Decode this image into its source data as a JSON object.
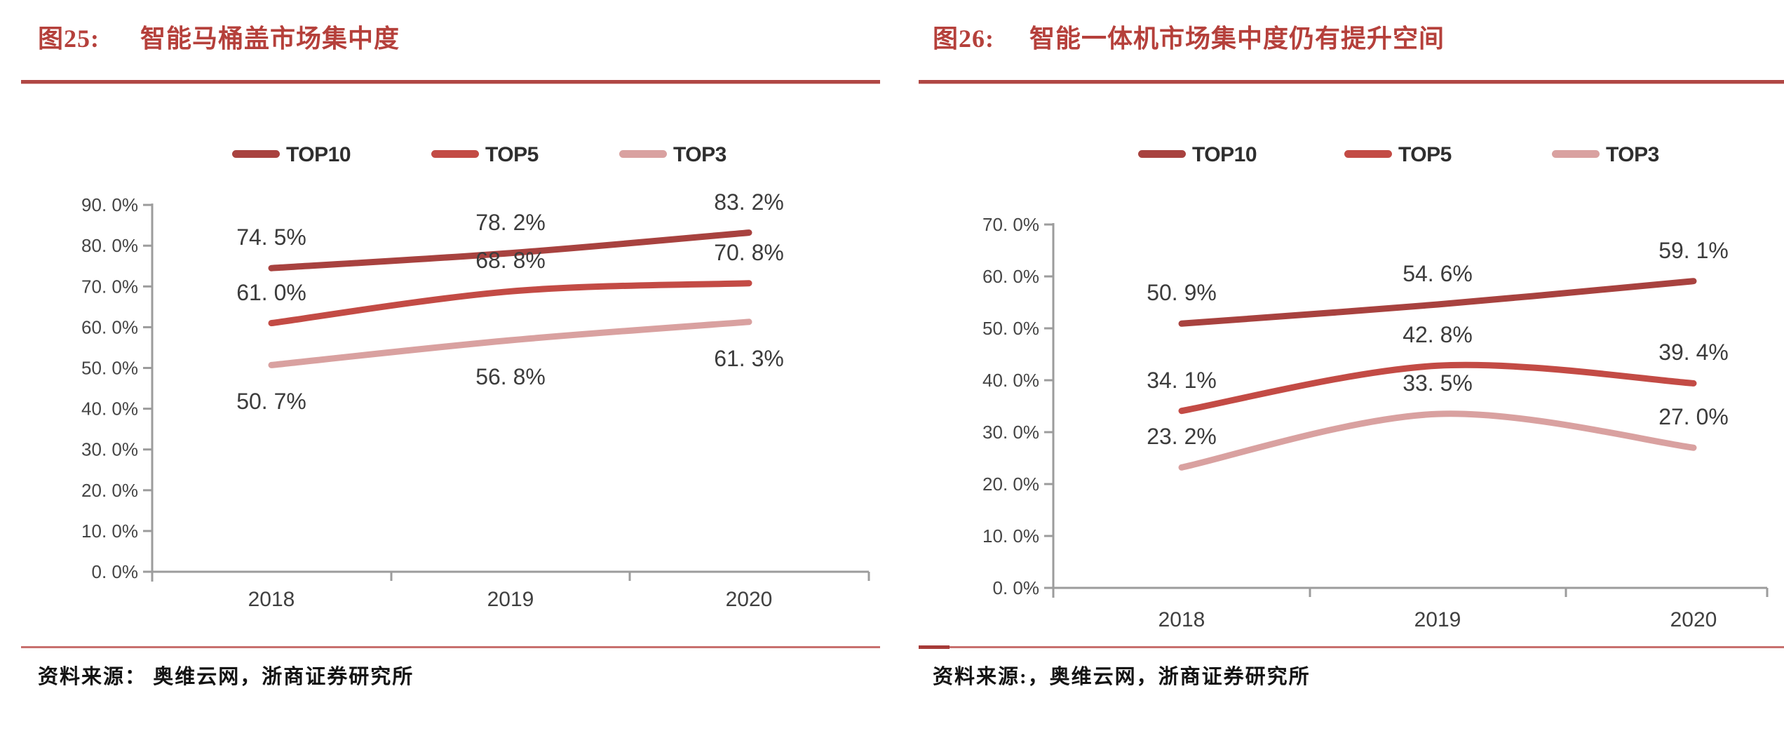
{
  "styles": {
    "title_color": "#B5403B",
    "rule_color": "#B04744",
    "axis_color": "#9C9C9C",
    "label_color": "#3C3C3C",
    "source_color": "#141414",
    "divider_color": "#C8706E",
    "divider_dark": "#A63B38"
  },
  "chart_data": [
    {
      "type": "line",
      "figure_label": "图25:",
      "title": "智能马桶盖市场集中度",
      "source": "资料来源： 奥维云网，浙商证券研究所",
      "categories": [
        "2018",
        "2019",
        "2020"
      ],
      "xlabel": "",
      "ylabel": "",
      "ylim": [
        0,
        90
      ],
      "y_step": 10,
      "y_tick_labels": [
        "0. 0%",
        "10. 0%",
        "20. 0%",
        "30. 0%",
        "40. 0%",
        "50. 0%",
        "60. 0%",
        "70. 0%",
        "80. 0%",
        "90. 0%"
      ],
      "grid": false,
      "legend_position": "top",
      "series": [
        {
          "name": "TOP10",
          "color": "#A8423F",
          "values": [
            74.5,
            78.2,
            83.2
          ],
          "point_labels": [
            "74. 5%",
            "78. 2%",
            "83. 2%"
          ],
          "label_side": "above"
        },
        {
          "name": "TOP5",
          "color": "#C34B45",
          "values": [
            61.0,
            68.8,
            70.8
          ],
          "point_labels": [
            "61. 0%",
            "68. 8%",
            "70. 8%"
          ],
          "label_side": "above"
        },
        {
          "name": "TOP3",
          "color": "#D9A1A0",
          "values": [
            50.7,
            56.8,
            61.3
          ],
          "point_labels": [
            "50. 7%",
            "56. 8%",
            "61. 3%"
          ],
          "label_side": "below"
        }
      ]
    },
    {
      "type": "line",
      "figure_label": "图26:",
      "title": "智能一体机市场集中度仍有提升空间",
      "source": "资料来源:，奥维云网，浙商证券研究所",
      "categories": [
        "2018",
        "2019",
        "2020"
      ],
      "xlabel": "",
      "ylabel": "",
      "ylim": [
        0,
        70
      ],
      "y_step": 10,
      "y_tick_labels": [
        "0. 0%",
        "10. 0%",
        "20. 0%",
        "30. 0%",
        "40. 0%",
        "50. 0%",
        "60. 0%",
        "70. 0%"
      ],
      "grid": false,
      "legend_position": "top",
      "series": [
        {
          "name": "TOP10",
          "color": "#A8423F",
          "values": [
            50.9,
            54.6,
            59.1
          ],
          "point_labels": [
            "50. 9%",
            "54. 6%",
            "59. 1%"
          ],
          "label_side": "above"
        },
        {
          "name": "TOP5",
          "color": "#C34B45",
          "values": [
            34.1,
            42.8,
            39.4
          ],
          "point_labels": [
            "34. 1%",
            "42. 8%",
            "39. 4%"
          ],
          "label_side": "above"
        },
        {
          "name": "TOP3",
          "color": "#D9A1A0",
          "values": [
            23.2,
            33.5,
            27.0
          ],
          "point_labels": [
            "23. 2%",
            "33. 5%",
            "27. 0%"
          ],
          "label_side": "above"
        }
      ]
    }
  ]
}
